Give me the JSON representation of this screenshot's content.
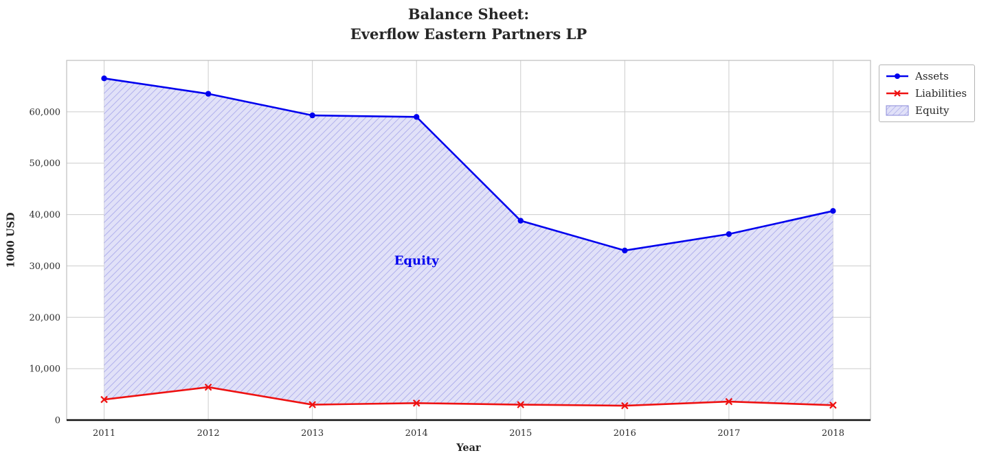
{
  "title": {
    "line1": "Balance Sheet:",
    "line2": "Everflow Eastern Partners LP"
  },
  "chart_data": {
    "type": "line",
    "title": "Balance Sheet:\nEverflow Eastern Partners LP",
    "xlabel": "Year",
    "ylabel": "1000 USD",
    "x": [
      2011,
      2012,
      2013,
      2014,
      2015,
      2016,
      2017,
      2018
    ],
    "series": [
      {
        "name": "Assets",
        "color": "#0000ee",
        "marker": "circle",
        "values": [
          66500,
          63500,
          59300,
          59000,
          38800,
          33000,
          36200,
          40700
        ]
      },
      {
        "name": "Liabilities",
        "color": "#ee1111",
        "marker": "x",
        "values": [
          4000,
          6400,
          3000,
          3300,
          3000,
          2800,
          3600,
          2900
        ]
      }
    ],
    "area": {
      "name": "Equity",
      "between": [
        "Liabilities",
        "Assets"
      ],
      "fill": "#e1e1f8",
      "hatch": "//",
      "hatch_color": "#a8a8ea"
    },
    "xlim": [
      2010.64,
      2018.36
    ],
    "ylim": [
      0,
      70000
    ],
    "xticks": [
      2011,
      2012,
      2013,
      2014,
      2015,
      2016,
      2017,
      2018
    ],
    "xtick_labels": [
      "2011",
      "2012",
      "2013",
      "2014",
      "2015",
      "2016",
      "2017",
      "2018"
    ],
    "yticks": [
      0,
      10000,
      20000,
      30000,
      40000,
      50000,
      60000
    ],
    "ytick_labels": [
      "0",
      "10,000",
      "20,000",
      "30,000",
      "40,000",
      "50,000",
      "60,000"
    ],
    "grid": true,
    "legend": {
      "position": "upper-right-outside",
      "items": [
        {
          "label": "Assets"
        },
        {
          "label": "Liabilities"
        },
        {
          "label": "Equity"
        }
      ]
    },
    "annotation": {
      "text": "Equity",
      "x": 2014,
      "y": 31000,
      "color": "#0000ee"
    }
  }
}
